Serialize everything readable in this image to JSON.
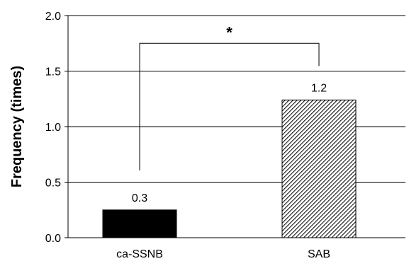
{
  "chart_data": {
    "type": "bar",
    "title": "",
    "xlabel": "",
    "ylabel": "Frequency (times)",
    "ylim": [
      0,
      2.0
    ],
    "yticks": [
      "0.0",
      "0.5",
      "1.0",
      "1.5",
      "2.0"
    ],
    "grid": true,
    "categories": [
      "ca-SSNB",
      "SAB"
    ],
    "values": [
      0.25,
      1.24
    ],
    "data_labels": [
      "0.3",
      "1.2"
    ],
    "bar_styles": [
      {
        "fill": "#000000",
        "pattern": "solid"
      },
      {
        "fill": "#ffffff",
        "pattern": "diagonal-hatch"
      }
    ],
    "significance": {
      "from": 0,
      "to": 1,
      "label": "*",
      "level": 1.75
    }
  }
}
